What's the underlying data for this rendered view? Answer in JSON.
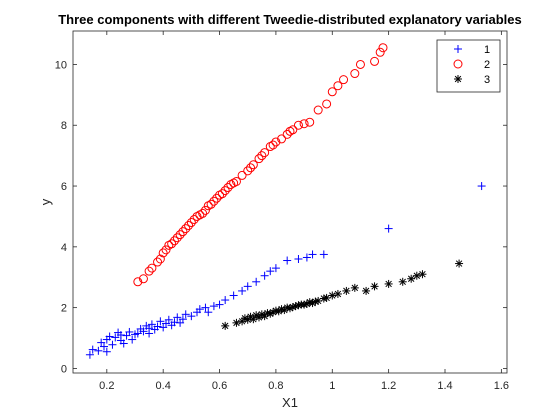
{
  "chart_data": {
    "type": "scatter",
    "title": "Three components with different Tweedie-distributed explanatory variables",
    "xlabel": "X1",
    "ylabel": "y",
    "xlim": [
      0.08,
      1.62
    ],
    "ylim": [
      -0.15,
      11.1
    ],
    "xticks": [
      0.2,
      0.4,
      0.6,
      0.8,
      1,
      1.2,
      1.4,
      1.6
    ],
    "xtick_labels": [
      "0.2",
      "0.4",
      "0.6",
      "0.8",
      "1",
      "1.2",
      "1.4",
      "1.6"
    ],
    "yticks": [
      0,
      2,
      4,
      6,
      8,
      10
    ],
    "ytick_labels": [
      "0",
      "2",
      "4",
      "6",
      "8",
      "10"
    ],
    "grid": false,
    "legend_position": "top-right",
    "series": [
      {
        "name": "1",
        "marker": "plus",
        "color": "#0000ff",
        "points": [
          [
            0.14,
            0.45
          ],
          [
            0.15,
            0.62
          ],
          [
            0.17,
            0.58
          ],
          [
            0.18,
            0.85
          ],
          [
            0.19,
            0.72
          ],
          [
            0.2,
            0.55
          ],
          [
            0.2,
            0.95
          ],
          [
            0.21,
            1.05
          ],
          [
            0.22,
            0.78
          ],
          [
            0.23,
            1.02
          ],
          [
            0.24,
            1.18
          ],
          [
            0.25,
            0.92
          ],
          [
            0.25,
            1.1
          ],
          [
            0.26,
            0.82
          ],
          [
            0.27,
            1.08
          ],
          [
            0.28,
            1.2
          ],
          [
            0.29,
            0.95
          ],
          [
            0.3,
            1.12
          ],
          [
            0.31,
            1.15
          ],
          [
            0.32,
            1.3
          ],
          [
            0.33,
            1.22
          ],
          [
            0.34,
            1.4
          ],
          [
            0.35,
            1.15
          ],
          [
            0.35,
            1.32
          ],
          [
            0.36,
            1.45
          ],
          [
            0.37,
            1.28
          ],
          [
            0.38,
            1.38
          ],
          [
            0.39,
            1.55
          ],
          [
            0.4,
            1.35
          ],
          [
            0.41,
            1.48
          ],
          [
            0.42,
            1.6
          ],
          [
            0.43,
            1.42
          ],
          [
            0.44,
            1.52
          ],
          [
            0.45,
            1.68
          ],
          [
            0.46,
            1.5
          ],
          [
            0.47,
            1.62
          ],
          [
            0.48,
            1.78
          ],
          [
            0.5,
            1.72
          ],
          [
            0.52,
            1.85
          ],
          [
            0.53,
            1.95
          ],
          [
            0.55,
            2.0
          ],
          [
            0.56,
            1.85
          ],
          [
            0.58,
            2.05
          ],
          [
            0.6,
            2.1
          ],
          [
            0.62,
            2.25
          ],
          [
            0.65,
            2.4
          ],
          [
            0.68,
            2.55
          ],
          [
            0.7,
            2.7
          ],
          [
            0.73,
            2.85
          ],
          [
            0.76,
            3.05
          ],
          [
            0.78,
            3.2
          ],
          [
            0.8,
            3.3
          ],
          [
            0.84,
            3.55
          ],
          [
            0.88,
            3.6
          ],
          [
            0.91,
            3.65
          ],
          [
            0.93,
            3.75
          ],
          [
            0.97,
            3.75
          ],
          [
            1.2,
            4.6
          ],
          [
            1.53,
            6.0
          ]
        ]
      },
      {
        "name": "2",
        "marker": "circle",
        "color": "#ff0000",
        "points": [
          [
            0.31,
            2.85
          ],
          [
            0.33,
            2.95
          ],
          [
            0.35,
            3.2
          ],
          [
            0.36,
            3.3
          ],
          [
            0.38,
            3.5
          ],
          [
            0.39,
            3.6
          ],
          [
            0.4,
            3.8
          ],
          [
            0.41,
            3.9
          ],
          [
            0.42,
            4.05
          ],
          [
            0.43,
            4.1
          ],
          [
            0.44,
            4.2
          ],
          [
            0.45,
            4.3
          ],
          [
            0.46,
            4.4
          ],
          [
            0.47,
            4.5
          ],
          [
            0.48,
            4.6
          ],
          [
            0.49,
            4.7
          ],
          [
            0.5,
            4.8
          ],
          [
            0.51,
            4.9
          ],
          [
            0.52,
            5.0
          ],
          [
            0.53,
            5.05
          ],
          [
            0.54,
            5.1
          ],
          [
            0.55,
            5.2
          ],
          [
            0.56,
            5.35
          ],
          [
            0.57,
            5.4
          ],
          [
            0.58,
            5.5
          ],
          [
            0.59,
            5.6
          ],
          [
            0.6,
            5.7
          ],
          [
            0.61,
            5.75
          ],
          [
            0.62,
            5.85
          ],
          [
            0.63,
            5.95
          ],
          [
            0.64,
            6.05
          ],
          [
            0.65,
            6.1
          ],
          [
            0.66,
            6.15
          ],
          [
            0.68,
            6.35
          ],
          [
            0.7,
            6.5
          ],
          [
            0.71,
            6.6
          ],
          [
            0.72,
            6.7
          ],
          [
            0.74,
            6.9
          ],
          [
            0.75,
            7.0
          ],
          [
            0.76,
            7.1
          ],
          [
            0.78,
            7.3
          ],
          [
            0.79,
            7.35
          ],
          [
            0.8,
            7.45
          ],
          [
            0.82,
            7.55
          ],
          [
            0.84,
            7.7
          ],
          [
            0.85,
            7.8
          ],
          [
            0.86,
            7.85
          ],
          [
            0.88,
            8.0
          ],
          [
            0.9,
            8.05
          ],
          [
            0.92,
            8.1
          ],
          [
            0.95,
            8.5
          ],
          [
            0.98,
            8.7
          ],
          [
            1.0,
            9.1
          ],
          [
            1.02,
            9.3
          ],
          [
            1.04,
            9.5
          ],
          [
            1.08,
            9.7
          ],
          [
            1.1,
            10.0
          ],
          [
            1.15,
            10.1
          ],
          [
            1.17,
            10.4
          ],
          [
            1.18,
            10.55
          ]
        ]
      },
      {
        "name": "3",
        "marker": "star",
        "color": "#000000",
        "points": [
          [
            0.62,
            1.4
          ],
          [
            0.66,
            1.5
          ],
          [
            0.68,
            1.55
          ],
          [
            0.69,
            1.65
          ],
          [
            0.7,
            1.6
          ],
          [
            0.71,
            1.7
          ],
          [
            0.72,
            1.62
          ],
          [
            0.73,
            1.75
          ],
          [
            0.74,
            1.68
          ],
          [
            0.75,
            1.78
          ],
          [
            0.76,
            1.72
          ],
          [
            0.77,
            1.82
          ],
          [
            0.78,
            1.8
          ],
          [
            0.79,
            1.85
          ],
          [
            0.8,
            1.9
          ],
          [
            0.81,
            1.88
          ],
          [
            0.82,
            1.95
          ],
          [
            0.83,
            1.92
          ],
          [
            0.84,
            2.0
          ],
          [
            0.85,
            1.98
          ],
          [
            0.86,
            2.02
          ],
          [
            0.87,
            2.05
          ],
          [
            0.88,
            2.08
          ],
          [
            0.89,
            2.1
          ],
          [
            0.9,
            2.1
          ],
          [
            0.91,
            2.12
          ],
          [
            0.92,
            2.18
          ],
          [
            0.93,
            2.15
          ],
          [
            0.94,
            2.2
          ],
          [
            0.95,
            2.22
          ],
          [
            0.97,
            2.3
          ],
          [
            0.98,
            2.32
          ],
          [
            1.0,
            2.4
          ],
          [
            1.02,
            2.45
          ],
          [
            1.05,
            2.55
          ],
          [
            1.08,
            2.65
          ],
          [
            1.12,
            2.55
          ],
          [
            1.15,
            2.7
          ],
          [
            1.2,
            2.78
          ],
          [
            1.25,
            2.85
          ],
          [
            1.28,
            2.95
          ],
          [
            1.3,
            3.05
          ],
          [
            1.32,
            3.1
          ],
          [
            1.45,
            3.45
          ]
        ]
      }
    ]
  }
}
